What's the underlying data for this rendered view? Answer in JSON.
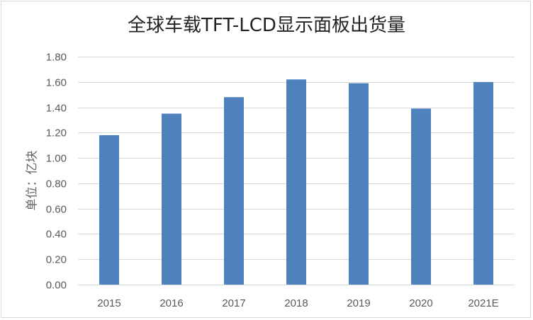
{
  "chart_data": {
    "type": "bar",
    "title": "全球车载TFT-LCD显示面板出货量",
    "ylabel": "单位：亿块",
    "xlabel": "",
    "categories": [
      "2015",
      "2016",
      "2017",
      "2018",
      "2019",
      "2020",
      "2021E"
    ],
    "series": [
      {
        "values": [
          1.18,
          1.35,
          1.48,
          1.62,
          1.59,
          1.39,
          1.6
        ]
      }
    ],
    "ylim": [
      0,
      1.8
    ],
    "yticks": [
      "0.00",
      "0.20",
      "0.40",
      "0.60",
      "0.80",
      "1.00",
      "1.20",
      "1.40",
      "1.60",
      "1.80"
    ],
    "grid": true,
    "legend": "none",
    "colors": {
      "bar": "#4f81bd",
      "grid": "#d9d9d9",
      "tick_text": "#595959"
    }
  }
}
